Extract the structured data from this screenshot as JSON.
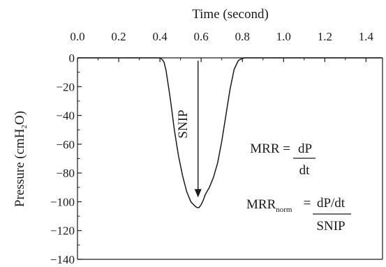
{
  "chart_data": {
    "type": "line",
    "title": "",
    "xlabel": "Time (second)",
    "ylabel": {
      "pre": "Pressure (cmH",
      "sub": "2",
      "post": "O)"
    },
    "xlim": [
      0.0,
      1.5
    ],
    "ylim": [
      -140,
      0
    ],
    "xticks": [
      0.0,
      0.2,
      0.4,
      0.6,
      0.8,
      1.0,
      1.2,
      1.4
    ],
    "xtick_labels": [
      "0.0",
      "0.2",
      "0.4",
      "0.6",
      "0.8",
      "1.0",
      "1.2",
      "1.4"
    ],
    "yticks": [
      0,
      -20,
      -40,
      -60,
      -80,
      -100,
      -120,
      -140
    ],
    "ytick_labels": [
      "0",
      "−20",
      "−40",
      "−60",
      "−80",
      "−100",
      "−120",
      "−140"
    ],
    "x_axis_position": "top",
    "grid": false,
    "legend": "none",
    "series": [
      {
        "x": [
          0.0,
          0.4,
          0.41,
          0.42,
          0.43,
          0.45,
          0.47,
          0.49,
          0.51,
          0.53,
          0.55,
          0.57,
          0.58,
          0.59,
          0.6,
          0.61,
          0.62,
          0.64,
          0.66,
          0.68,
          0.7,
          0.72,
          0.74,
          0.76,
          0.78,
          0.79,
          0.8,
          0.81,
          1.48
        ],
        "y": [
          0,
          0,
          -1,
          -3,
          -9,
          -28,
          -50,
          -68,
          -82,
          -93,
          -100,
          -103,
          -104,
          -104,
          -102,
          -99,
          -95,
          -90,
          -83,
          -73,
          -58,
          -40,
          -22,
          -8,
          -2,
          -1,
          -0.5,
          0,
          0
        ]
      }
    ],
    "annotations": {
      "arrow_label": "SNIP",
      "formula1": {
        "lhs": "MRR =",
        "numerator": "dP",
        "denominator": "dt"
      },
      "formula2": {
        "lhs": "MRR",
        "lhs_sub": "norm",
        "equals": "=",
        "numerator": "dP/dt",
        "denominator": "SNIP"
      }
    }
  }
}
